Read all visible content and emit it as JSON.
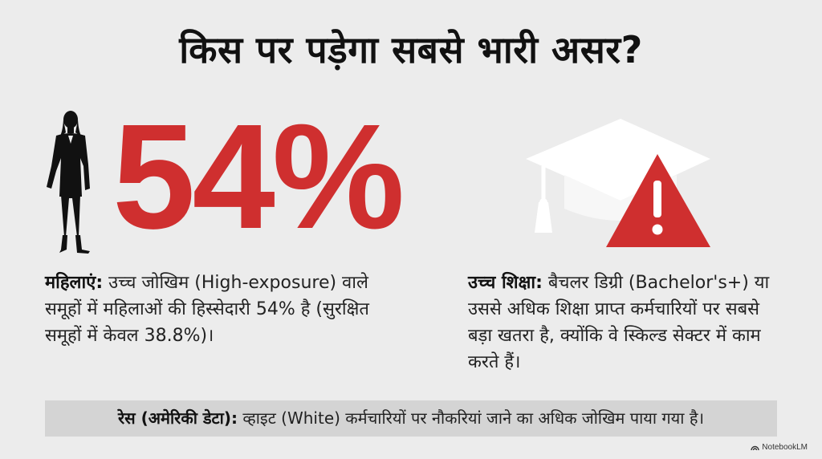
{
  "title": "किस पर पड़ेगा सबसे भारी असर?",
  "stat": {
    "value": "54%"
  },
  "women": {
    "label": "महिलाएं:",
    "text": "उच्च जोखिम (High-exposure) वाले समूहों में महिलाओं की हिस्सेदारी 54% है (सुरक्षित समूहों में केवल 38.8%)।"
  },
  "education": {
    "label": "उच्च शिक्षा:",
    "text": "बैचलर डिग्री (Bachelor's+) या उससे अधिक शिक्षा प्राप्त कर्मचारियों पर सबसे बड़ा खतरा है, क्योंकि वे स्किल्ड सेक्टर में काम करते हैं।"
  },
  "race": {
    "label": "रेस (अमेरिकी डेटा):",
    "text": "व्हाइट (White) कर्मचारियों पर नौकरियां जाने का अधिक जोखिम पाया गया है।"
  },
  "branding": {
    "text": "NotebookLM"
  },
  "colors": {
    "accent": "#cf2f2f",
    "background": "#ececec",
    "banner": "#d4d4d4"
  },
  "icons": [
    "woman-silhouette-icon",
    "graduation-cap-icon",
    "warning-icon"
  ]
}
